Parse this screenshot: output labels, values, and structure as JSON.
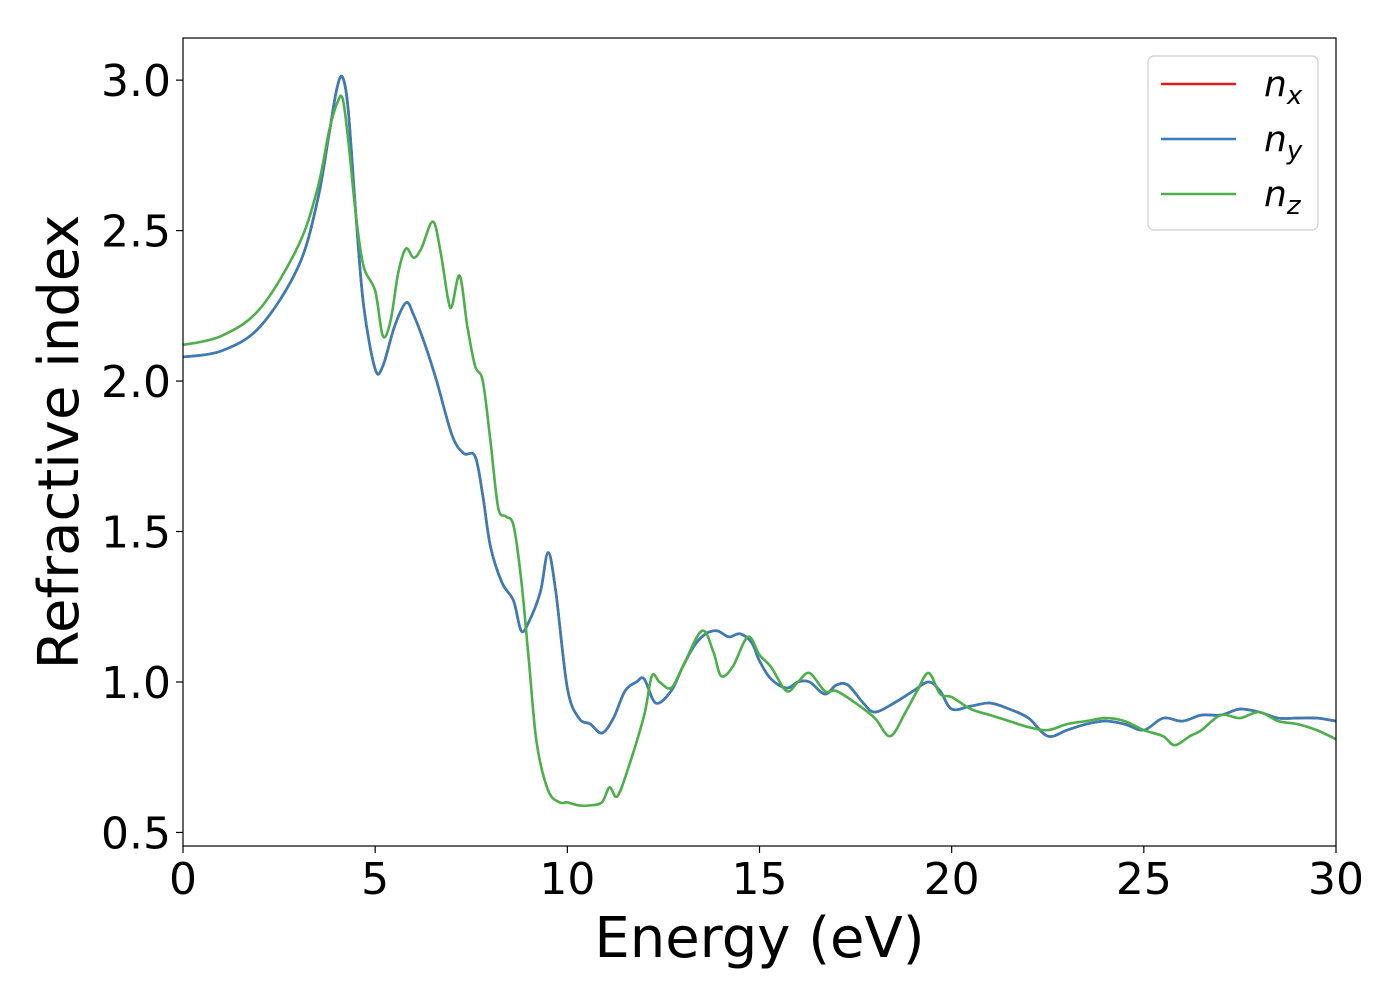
{
  "chart_data": {
    "type": "line",
    "xlabel": "Energy (eV)",
    "ylabel": "Refractive index",
    "xlim": [
      0,
      30
    ],
    "ylim": [
      0.455,
      3.14
    ],
    "xticks": [
      0,
      5,
      10,
      15,
      20,
      25,
      30
    ],
    "xtick_labels": [
      "0",
      "5",
      "10",
      "15",
      "20",
      "25",
      "30"
    ],
    "yticks": [
      0.5,
      1.0,
      1.5,
      2.0,
      2.5,
      3.0
    ],
    "ytick_labels": [
      "0.5",
      "1.0",
      "1.5",
      "2.0",
      "2.5",
      "3.0"
    ],
    "grid": false,
    "legend_position": "top-right",
    "series": [
      {
        "name": "n_x",
        "base": "n",
        "sub": "x",
        "color": "#e41a1c",
        "x": [
          0,
          1,
          2,
          3,
          3.5,
          3.8,
          4.0,
          4.15,
          4.3,
          4.5,
          4.7,
          5.0,
          5.2,
          5.5,
          5.8,
          6.0,
          6.3,
          6.6,
          7.0,
          7.3,
          7.6,
          7.8,
          8.0,
          8.3,
          8.6,
          8.8,
          9.0,
          9.3,
          9.5,
          9.7,
          10.0,
          10.3,
          10.6,
          10.9,
          11.2,
          11.5,
          11.8,
          12.0,
          12.3,
          12.7,
          13.0,
          13.3,
          13.6,
          13.9,
          14.2,
          14.5,
          14.8,
          15.0,
          15.3,
          15.7,
          16.0,
          16.3,
          16.7,
          17.0,
          17.3,
          17.7,
          18.0,
          18.5,
          19.0,
          19.4,
          19.7,
          20.0,
          20.5,
          21.0,
          21.5,
          22.0,
          22.5,
          23.0,
          23.5,
          24.0,
          24.5,
          25.0,
          25.5,
          26.0,
          26.5,
          27.0,
          27.5,
          28.0,
          28.5,
          29.0,
          29.5,
          30.0
        ],
        "y": [
          2.08,
          2.1,
          2.18,
          2.38,
          2.6,
          2.82,
          2.97,
          3.01,
          2.9,
          2.55,
          2.25,
          2.04,
          2.05,
          2.18,
          2.26,
          2.22,
          2.12,
          2.0,
          1.82,
          1.76,
          1.75,
          1.62,
          1.45,
          1.33,
          1.27,
          1.17,
          1.2,
          1.3,
          1.43,
          1.3,
          0.98,
          0.88,
          0.86,
          0.83,
          0.88,
          0.97,
          1.0,
          1.01,
          0.93,
          0.97,
          1.05,
          1.12,
          1.16,
          1.17,
          1.15,
          1.16,
          1.13,
          1.07,
          1.01,
          0.98,
          1.0,
          1.0,
          0.96,
          0.99,
          0.99,
          0.93,
          0.9,
          0.93,
          0.97,
          1.0,
          0.97,
          0.91,
          0.92,
          0.93,
          0.91,
          0.88,
          0.82,
          0.84,
          0.86,
          0.87,
          0.86,
          0.84,
          0.88,
          0.87,
          0.89,
          0.89,
          0.91,
          0.9,
          0.88,
          0.88,
          0.88,
          0.87
        ]
      },
      {
        "name": "n_y",
        "base": "n",
        "sub": "y",
        "color": "#377eb8",
        "x": [
          0,
          1,
          2,
          3,
          3.5,
          3.8,
          4.0,
          4.15,
          4.3,
          4.5,
          4.7,
          5.0,
          5.2,
          5.5,
          5.8,
          6.0,
          6.3,
          6.6,
          7.0,
          7.3,
          7.6,
          7.8,
          8.0,
          8.3,
          8.6,
          8.8,
          9.0,
          9.3,
          9.5,
          9.7,
          10.0,
          10.3,
          10.6,
          10.9,
          11.2,
          11.5,
          11.8,
          12.0,
          12.3,
          12.7,
          13.0,
          13.3,
          13.6,
          13.9,
          14.2,
          14.5,
          14.8,
          15.0,
          15.3,
          15.7,
          16.0,
          16.3,
          16.7,
          17.0,
          17.3,
          17.7,
          18.0,
          18.5,
          19.0,
          19.4,
          19.7,
          20.0,
          20.5,
          21.0,
          21.5,
          22.0,
          22.5,
          23.0,
          23.5,
          24.0,
          24.5,
          25.0,
          25.5,
          26.0,
          26.5,
          27.0,
          27.5,
          28.0,
          28.5,
          29.0,
          29.5,
          30.0
        ],
        "y": [
          2.08,
          2.1,
          2.18,
          2.38,
          2.6,
          2.82,
          2.97,
          3.01,
          2.9,
          2.55,
          2.25,
          2.04,
          2.05,
          2.18,
          2.26,
          2.22,
          2.12,
          2.0,
          1.82,
          1.76,
          1.75,
          1.62,
          1.45,
          1.33,
          1.27,
          1.17,
          1.2,
          1.3,
          1.43,
          1.3,
          0.98,
          0.88,
          0.86,
          0.83,
          0.88,
          0.97,
          1.0,
          1.01,
          0.93,
          0.97,
          1.05,
          1.12,
          1.16,
          1.17,
          1.15,
          1.16,
          1.13,
          1.07,
          1.01,
          0.98,
          1.0,
          1.0,
          0.96,
          0.99,
          0.99,
          0.93,
          0.9,
          0.93,
          0.97,
          1.0,
          0.97,
          0.91,
          0.92,
          0.93,
          0.91,
          0.88,
          0.82,
          0.84,
          0.86,
          0.87,
          0.86,
          0.84,
          0.88,
          0.87,
          0.89,
          0.89,
          0.91,
          0.9,
          0.88,
          0.88,
          0.88,
          0.87
        ]
      },
      {
        "name": "n_z",
        "base": "n",
        "sub": "z",
        "color": "#4daf4a",
        "x": [
          0,
          1,
          2,
          3,
          3.5,
          3.8,
          4.0,
          4.15,
          4.3,
          4.5,
          4.7,
          5.0,
          5.2,
          5.4,
          5.6,
          5.8,
          6.0,
          6.2,
          6.5,
          6.7,
          6.9,
          7.0,
          7.2,
          7.4,
          7.6,
          7.8,
          8.0,
          8.2,
          8.4,
          8.6,
          8.8,
          9.0,
          9.2,
          9.5,
          9.8,
          10.0,
          10.3,
          10.6,
          10.9,
          11.1,
          11.3,
          11.6,
          12.0,
          12.2,
          12.4,
          12.7,
          13.0,
          13.5,
          13.8,
          14.0,
          14.3,
          14.7,
          15.0,
          15.3,
          15.7,
          16.0,
          16.3,
          16.7,
          17.0,
          17.5,
          18.0,
          18.4,
          18.8,
          19.1,
          19.4,
          19.7,
          20.0,
          20.5,
          21.0,
          21.5,
          22.0,
          22.5,
          23.0,
          23.5,
          24.0,
          24.5,
          25.0,
          25.5,
          25.8,
          26.2,
          26.5,
          27.0,
          27.5,
          28.0,
          28.5,
          29.0,
          29.5,
          30.0
        ],
        "y": [
          2.12,
          2.15,
          2.24,
          2.45,
          2.64,
          2.83,
          2.92,
          2.94,
          2.8,
          2.55,
          2.38,
          2.3,
          2.15,
          2.2,
          2.36,
          2.44,
          2.41,
          2.44,
          2.53,
          2.43,
          2.27,
          2.25,
          2.35,
          2.18,
          2.05,
          2.0,
          1.8,
          1.58,
          1.55,
          1.52,
          1.34,
          1.07,
          0.8,
          0.64,
          0.6,
          0.6,
          0.59,
          0.59,
          0.6,
          0.65,
          0.62,
          0.72,
          0.89,
          1.02,
          1.0,
          0.98,
          1.05,
          1.17,
          1.1,
          1.02,
          1.05,
          1.15,
          1.09,
          1.05,
          0.97,
          1.0,
          1.03,
          0.97,
          0.97,
          0.93,
          0.88,
          0.82,
          0.9,
          0.97,
          1.03,
          0.96,
          0.95,
          0.91,
          0.89,
          0.87,
          0.85,
          0.84,
          0.86,
          0.87,
          0.88,
          0.87,
          0.84,
          0.82,
          0.79,
          0.82,
          0.84,
          0.89,
          0.88,
          0.9,
          0.87,
          0.86,
          0.84,
          0.81
        ]
      }
    ]
  }
}
